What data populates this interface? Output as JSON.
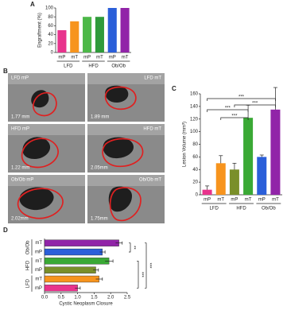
{
  "chart_data": [
    {
      "type": "bar",
      "panel": "A",
      "ylabel": "Engraftment (%)",
      "categories": [
        "mP",
        "mT",
        "mP",
        "mT",
        "mP",
        "mT"
      ],
      "groups": [
        "LFD",
        "HFD",
        "Ob/Ob"
      ],
      "values": [
        50,
        70,
        80,
        80,
        100,
        100
      ],
      "colors": [
        "#e8338c",
        "#f7941d",
        "#4cb848",
        "#2e9a3a",
        "#2b5fd9",
        "#9124a8"
      ],
      "ylim": [
        0,
        100
      ],
      "yticks": [
        0,
        20,
        40,
        60,
        80,
        100
      ]
    },
    {
      "type": "image_grid",
      "panel": "B",
      "panels": [
        {
          "label": "LFD mP",
          "scale": "1.77 mm"
        },
        {
          "label": "LFD mT",
          "scale": "1.89 mm"
        },
        {
          "label": "HFD mP",
          "scale": "1.22 mm"
        },
        {
          "label": "HFD mT",
          "scale": "2.05mm"
        },
        {
          "label": "Ob/Ob mP",
          "scale": "2.02mm"
        },
        {
          "label": "Ob/Ob mT",
          "scale": "1.75mm"
        }
      ]
    },
    {
      "type": "bar",
      "panel": "C",
      "ylabel": "Lesion Volume (mm³)",
      "categories": [
        "mP",
        "mT",
        "mP",
        "mT",
        "mP",
        "mT"
      ],
      "groups": [
        "LFD",
        "HFD",
        "Ob/Ob"
      ],
      "values": [
        8,
        50,
        40,
        122,
        60,
        135
      ],
      "errors": [
        6,
        12,
        10,
        20,
        3,
        35
      ],
      "colors": [
        "#e8338c",
        "#f7941d",
        "#7a8f2a",
        "#3aa935",
        "#2b5fd9",
        "#9124a8"
      ],
      "ylim": [
        0,
        160
      ],
      "yticks": [
        0,
        20,
        40,
        60,
        80,
        100,
        120,
        140,
        160
      ],
      "annotations": [
        "***",
        "***",
        "***",
        "***"
      ]
    },
    {
      "type": "barh",
      "panel": "D",
      "xlabel": "Cystic Neoplasm Closure",
      "categories": [
        "mP",
        "mT",
        "mP",
        "mT",
        "mP",
        "mT"
      ],
      "groups": [
        "LFD",
        "HFD",
        "Ob/Ob"
      ],
      "values": [
        1.0,
        1.65,
        1.55,
        1.95,
        1.75,
        2.25
      ],
      "errors": [
        0.08,
        0.1,
        0.08,
        0.12,
        0.08,
        0.1
      ],
      "colors": [
        "#e8338c",
        "#f7941d",
        "#7a8f2a",
        "#3aa935",
        "#2b5fd9",
        "#9124a8"
      ],
      "xlim": [
        0,
        2.5
      ],
      "xticks": [
        {
          "value": 0,
          "label": "0.0"
        },
        0.5,
        {
          "value": 1,
          "label": "1.0"
        },
        1.5,
        {
          "value": 2,
          "label": "2.0"
        },
        2.5
      ],
      "annotations": [
        "***",
        "***",
        "**"
      ]
    }
  ]
}
